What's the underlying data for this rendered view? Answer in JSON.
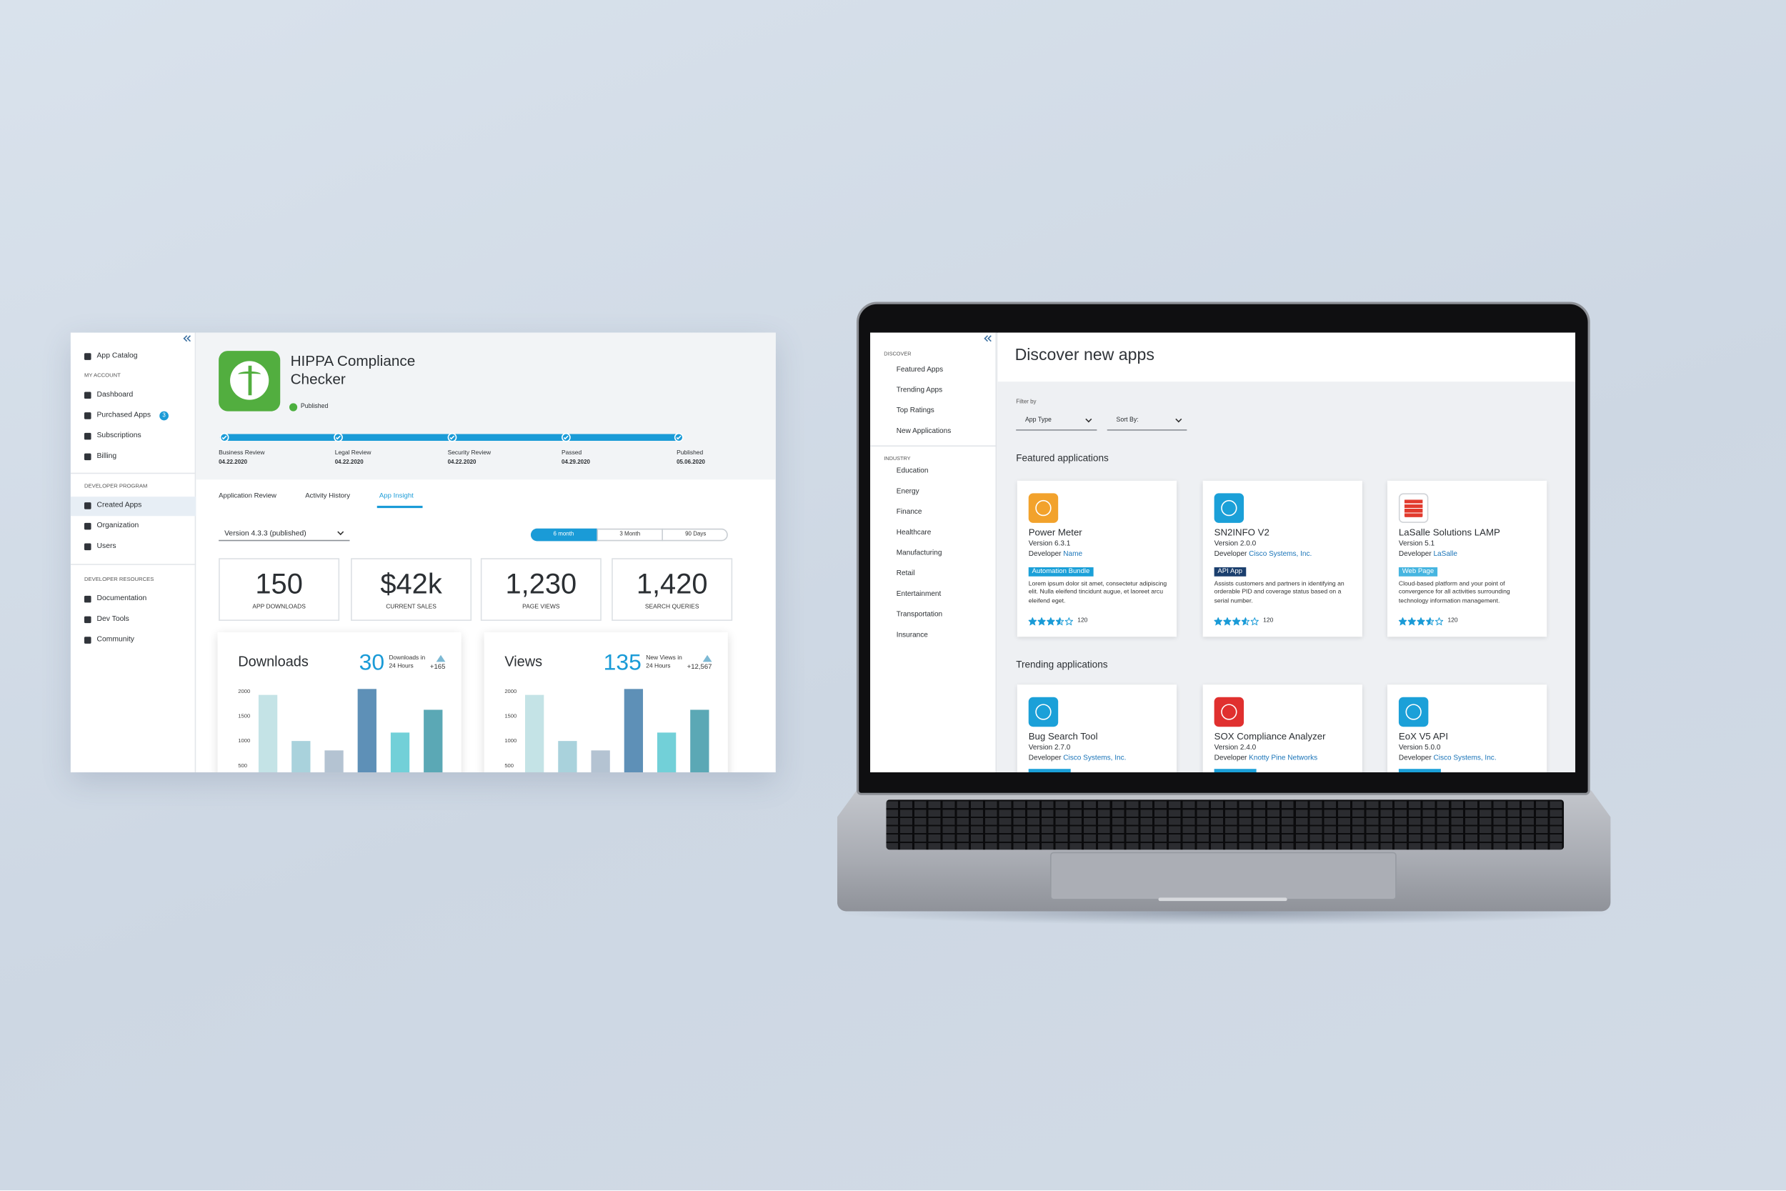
{
  "left_screen": {
    "sidebar": {
      "top_item": "App Catalog",
      "sections": [
        {
          "heading": "MY ACCOUNT",
          "items": [
            "Dashboard",
            "Purchased Apps",
            "Subscriptions",
            "Billing"
          ]
        },
        {
          "heading": "DEVELOPER PROGRAM",
          "items": [
            "Created Apps",
            "Organization",
            "Users"
          ]
        },
        {
          "heading": "DEVELOPER RESOURCES",
          "items": [
            "Documentation",
            "Dev Tools",
            "Community"
          ]
        }
      ],
      "badge": "3"
    },
    "app": {
      "title": "HIPPA Compliance Checker",
      "status": "Published"
    },
    "steps": [
      {
        "label": "Business Review",
        "date": "04.22.2020"
      },
      {
        "label": "Legal Review",
        "date": "04.22.2020"
      },
      {
        "label": "Security Review",
        "date": "04.22.2020"
      },
      {
        "label": "Passed",
        "date": "04.29.2020"
      },
      {
        "label": "Published",
        "date": "05.06.2020"
      }
    ],
    "tabs": [
      "Application Review",
      "Activity History",
      "App Insight"
    ],
    "version": "Version 4.3.3 (published)",
    "ranges": [
      "6 month",
      "3 Month",
      "90 Days"
    ],
    "stats": [
      {
        "value": "150",
        "label": "APP DOWNLOADS"
      },
      {
        "value": "$42k",
        "label": "CURRENT SALES"
      },
      {
        "value": "1,230",
        "label": "PAGE VIEWS"
      },
      {
        "value": "1,420",
        "label": "SEARCH QUERIES"
      }
    ],
    "charts": [
      {
        "title": "Downloads",
        "count": "30",
        "caption": "Downloads in 24 Hours",
        "change": "+165",
        "ylim": [
          0,
          2000
        ],
        "yticks": [
          2000,
          1500,
          1000,
          500
        ],
        "values": [
          1930,
          1000,
          810,
          2050,
          1170,
          1630
        ],
        "colors": [
          "#c4e3e6",
          "#a9d2dc",
          "#b4c3d2",
          "#5e90b7",
          "#72d0d8",
          "#5ba8b5"
        ]
      },
      {
        "title": "Views",
        "count": "135",
        "caption": "New Views in 24 Hours",
        "change": "+12,567",
        "ylim": [
          0,
          2000
        ],
        "yticks": [
          2000,
          1500,
          1000,
          500
        ],
        "values": [
          1930,
          1000,
          810,
          2050,
          1170,
          1630
        ],
        "colors": [
          "#c4e3e6",
          "#a9d2dc",
          "#b4c3d2",
          "#5e90b7",
          "#72d0d8",
          "#5ba8b5"
        ]
      }
    ]
  },
  "laptop_screen": {
    "sidebar": {
      "discover_heading": "DISCOVER",
      "discover_items": [
        "Featured Apps",
        "Trending Apps",
        "Top Ratings",
        "New Applications"
      ],
      "industry_heading": "INDUSTRY",
      "industry_items": [
        "Education",
        "Energy",
        "Finance",
        "Healthcare",
        "Manufacturing",
        "Retail",
        "Entertainment",
        "Transportation",
        "Insurance"
      ]
    },
    "title": "Discover new apps",
    "filter_label": "Filter by",
    "filters": [
      "App Type",
      "Sort By:"
    ],
    "featured_heading": "Featured applications",
    "featured": [
      {
        "name": "Power Meter",
        "version": "Version 6.3.1",
        "developer_label": "Developer",
        "developer": "Name",
        "tag": "Automation Bundle",
        "tag_color": "#1ba0d8",
        "icon_color": "#f2a22c",
        "description": "Lorem ipsum dolor sit amet, consectetur adipiscing elit. Nulla eleifend tincidunt augue, et laoreet arcu eleifend eget.",
        "rating": 3.5,
        "rating_count": "120"
      },
      {
        "name": "SN2INFO V2",
        "version": "Version 2.0.0",
        "developer_label": "Developer",
        "developer": "Cisco Systems, Inc.",
        "tag": "API App",
        "tag_color": "#1b3f6e",
        "icon_color": "#1ba0d8",
        "description": "Assists customers and partners in identifying an orderable PID and coverage status based on a serial number.",
        "rating": 3.5,
        "rating_count": "120"
      },
      {
        "name": "LaSalle Solutions LAMP",
        "version": "Version 5.1",
        "developer_label": "Developer",
        "developer": "LaSalle",
        "tag": "Web Page",
        "tag_color": "#46b5e0",
        "icon_color": "#ffffff",
        "description": "Cloud-based platform and your point of convergence for all activities surrounding technology information management.",
        "rating": 3.5,
        "rating_count": "120"
      }
    ],
    "trending_heading": "Trending applications",
    "trending": [
      {
        "name": "Bug Search Tool",
        "version": "Version 2.7.0",
        "developer_label": "Developer",
        "developer": "Cisco Systems, Inc.",
        "tag_color": "#1ba0d8",
        "icon_color": "#1ba0d8"
      },
      {
        "name": "SOX Compliance Analyzer",
        "version": "Version 2.4.0",
        "developer_label": "Developer",
        "developer": "Knotty Pine Networks",
        "tag_color": "#1ba0d8",
        "icon_color": "#e0302f"
      },
      {
        "name": "EoX V5 API",
        "version": "Version 5.0.0",
        "developer_label": "Developer",
        "developer": "Cisco Systems, Inc.",
        "tag_color": "#1ba0d8",
        "icon_color": "#1ba0d8"
      }
    ]
  }
}
